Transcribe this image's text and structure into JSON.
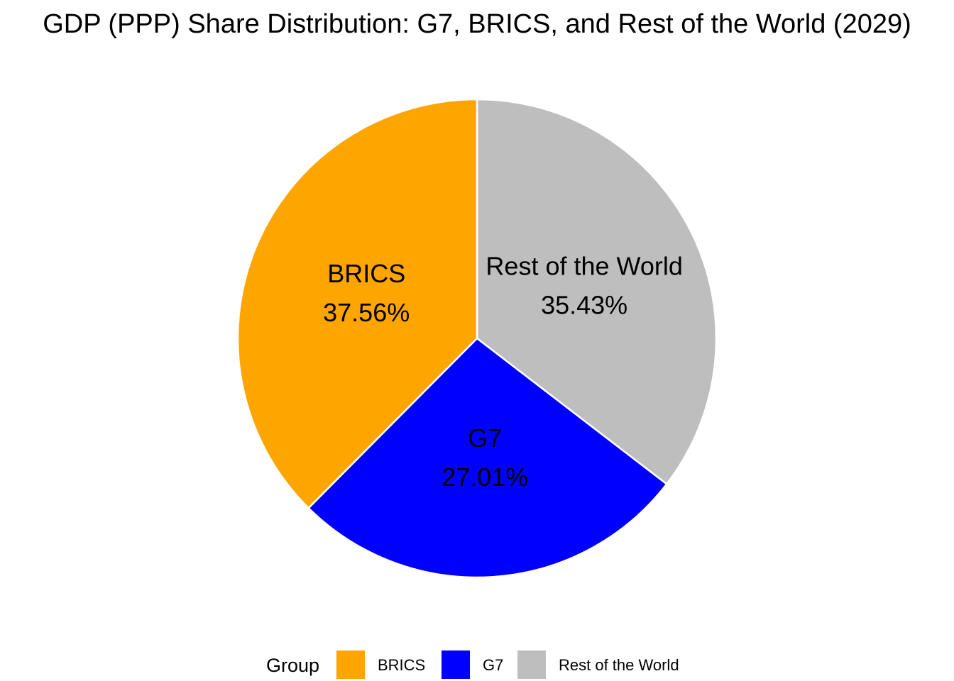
{
  "chart_data": {
    "type": "pie",
    "title": "GDP (PPP) Share Distribution: G7, BRICS, and Rest of the World (2029)",
    "slices": [
      {
        "label": "Rest of the World",
        "value": 35.43,
        "value_label": "35.43%",
        "color": "#BEBEBE"
      },
      {
        "label": "G7",
        "value": 27.01,
        "value_label": "27.01%",
        "color": "#0000FF"
      },
      {
        "label": "BRICS",
        "value": 37.56,
        "value_label": "37.56%",
        "color": "#FFA500"
      }
    ],
    "start_angle": "12 o'clock",
    "direction": "clockwise",
    "legend": {
      "title": "Group",
      "placement": "bottom",
      "entries": [
        {
          "label": "BRICS",
          "color": "#FFA500"
        },
        {
          "label": "G7",
          "color": "#0000FF"
        },
        {
          "label": "Rest of the World",
          "color": "#BEBEBE"
        }
      ]
    }
  }
}
